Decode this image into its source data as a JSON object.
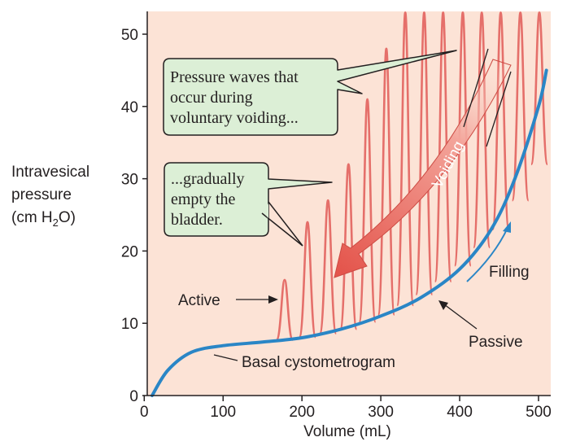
{
  "chart_data": {
    "type": "line",
    "xlabel": "Volume (mL)",
    "ylabel_lines": [
      "Intravesical",
      "pressure",
      "(cm H",
      "2",
      "O)"
    ],
    "xlim": [
      0,
      510
    ],
    "ylim": [
      0,
      53
    ],
    "xticks": [
      0,
      100,
      200,
      300,
      400,
      500
    ],
    "yticks": [
      0,
      10,
      20,
      30,
      40,
      50
    ],
    "series": [
      {
        "name": "Basal cystometrogram",
        "color": "#2a86c6",
        "x": [
          10,
          30,
          60,
          100,
          150,
          200,
          250,
          300,
          350,
          400,
          440,
          470,
          500,
          510
        ],
        "y": [
          0,
          3.5,
          6,
          6.9,
          7.4,
          8.0,
          9.2,
          11.0,
          13.5,
          17.5,
          23,
          30,
          40,
          45
        ]
      },
      {
        "name": "Active",
        "color": "#e56f6a",
        "peaks_x": [
          178,
          207,
          233,
          259,
          283,
          307,
          331,
          355,
          379,
          404,
          428,
          452,
          477,
          501
        ],
        "peaks_y": [
          16,
          24,
          27,
          32,
          41,
          48,
          53,
          53,
          53,
          53,
          53,
          53,
          53,
          53
        ],
        "trough_y": [
          7.7,
          8.1,
          8.6,
          9.2,
          10.2,
          11.2,
          12.5,
          14,
          15.8,
          18,
          20.5,
          23,
          27,
          32
        ]
      }
    ],
    "annotations": {
      "active": "Active",
      "passive": "Passive",
      "filling": "Filling",
      "voiding": "Voiding",
      "basal": "Basal cystometrogram",
      "box1": [
        "Pressure waves that",
        "occur during",
        "voluntary voiding..."
      ],
      "box2": [
        "...gradually",
        "empty the",
        "bladder."
      ]
    },
    "colors": {
      "background": "#fce3d6",
      "passive_line": "#2a86c6",
      "active_waves": "#e56f6a",
      "callout_fill": "#dcefd6",
      "arrow_dark": "#dd4c44"
    }
  }
}
